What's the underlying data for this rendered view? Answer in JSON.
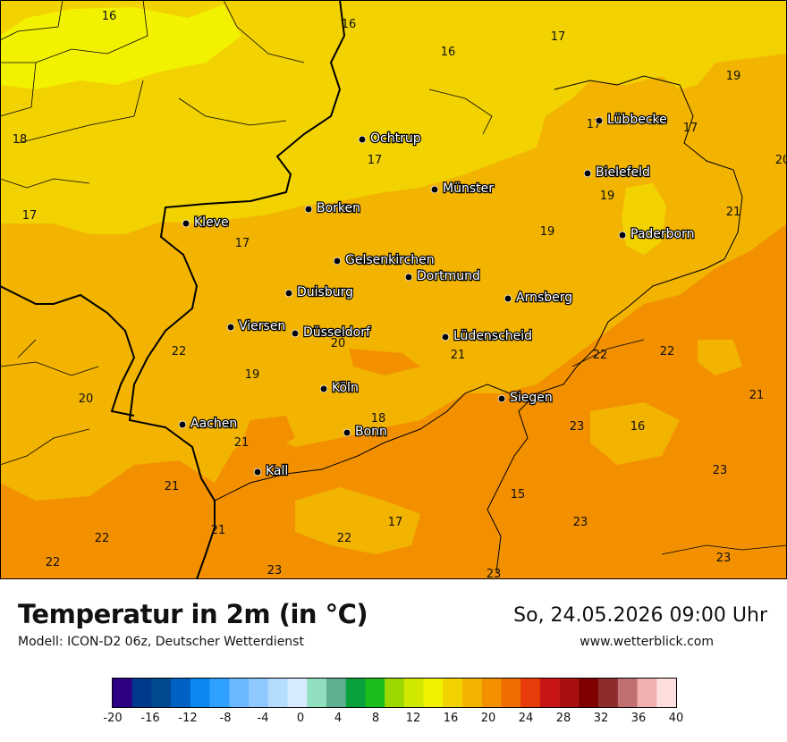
{
  "map": {
    "cities": [
      {
        "name": "Ochtrup"
      },
      {
        "name": "Lübbecke"
      },
      {
        "name": "Bielefeld"
      },
      {
        "name": "Münster"
      },
      {
        "name": "Borken"
      },
      {
        "name": "Kleve"
      },
      {
        "name": "Paderborn"
      },
      {
        "name": "Gelsenkirchen"
      },
      {
        "name": "Dortmund"
      },
      {
        "name": "Duisburg"
      },
      {
        "name": "Arnsberg"
      },
      {
        "name": "Viersen"
      },
      {
        "name": "Düsseldorf"
      },
      {
        "name": "Lüdenscheid"
      },
      {
        "name": "Köln"
      },
      {
        "name": "Siegen"
      },
      {
        "name": "Aachen"
      },
      {
        "name": "Bonn"
      },
      {
        "name": "Kall"
      }
    ],
    "temperature_labels": [
      "16",
      "16",
      "17",
      "16",
      "19",
      "18",
      "17",
      "17",
      "20",
      "17",
      "19",
      "21",
      "17",
      "19",
      "17",
      "20",
      "22",
      "22",
      "21",
      "19",
      "20",
      "22",
      "18",
      "23",
      "16",
      "21",
      "21",
      "23",
      "15",
      "21",
      "17",
      "23",
      "22",
      "21",
      "22",
      "23",
      "22",
      "23",
      "23"
    ]
  },
  "footer": {
    "title": "Temperatur in 2m (in °C)",
    "model": "Modell: ICON-D2 06z, Deutscher Wetterdienst",
    "datetime": "So, 24.05.2026 09:00 Uhr",
    "website": "www.wetterblick.com"
  },
  "legend": {
    "ticks": [
      "-20",
      "-16",
      "-12",
      "-8",
      "-4",
      "0",
      "4",
      "8",
      "12",
      "16",
      "20",
      "24",
      "28",
      "32",
      "36",
      "40"
    ],
    "colors": [
      "#2d0083",
      "#003a8c",
      "#004a90",
      "#0061c4",
      "#0a87f0",
      "#2ea0ff",
      "#6ab8ff",
      "#8ec8ff",
      "#b4dcff",
      "#d6ebff",
      "#90e0c0",
      "#5fb090",
      "#0aa03c",
      "#1cbd1c",
      "#9ad800",
      "#d0e800",
      "#f2f200",
      "#f2d200",
      "#f2b400",
      "#f29000",
      "#ef6c00",
      "#e83c0a",
      "#c81414",
      "#a81010",
      "#800000",
      "#8c2c2c",
      "#c07070",
      "#f0b0b0",
      "#ffdede"
    ]
  },
  "colors": {
    "land_base": "#f2b400",
    "yellow": "#f2d200",
    "light_yellow": "#f2f200",
    "orange": "#f29000"
  }
}
